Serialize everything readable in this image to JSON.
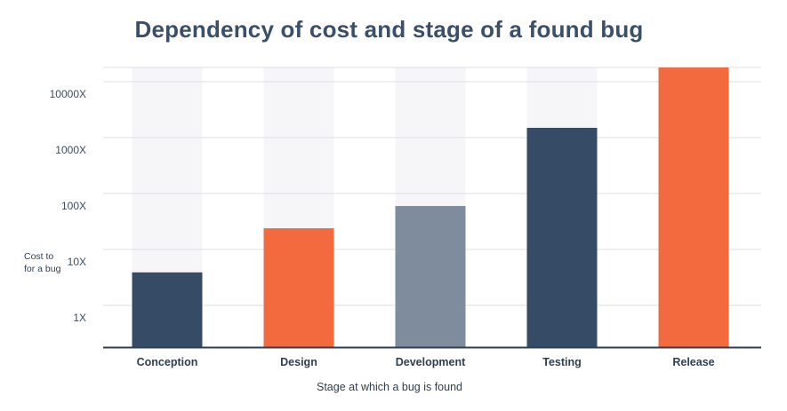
{
  "chart_data": {
    "type": "bar",
    "title": "Dependency of cost and stage of a found bug",
    "xlabel": "Stage at which a bug is found",
    "ylabel_lines": [
      "Cost to",
      "for a bug"
    ],
    "yscale": "log",
    "ylim": [
      0.3,
      30000
    ],
    "yticks": [
      1,
      10,
      100,
      1000,
      10000
    ],
    "ytick_labels": [
      "1X",
      "10X",
      "100X",
      "1000X",
      "10000X"
    ],
    "grid": true,
    "categories": [
      "Conception",
      "Design",
      "Development",
      "Testing",
      "Release"
    ],
    "values": [
      6.5,
      40,
      100,
      2500,
      30000
    ],
    "bar_colors": [
      "#364b66",
      "#f26a3d",
      "#7f8c9e",
      "#364b66",
      "#f26a3d"
    ],
    "background_column_color": "#f6f6f9"
  }
}
